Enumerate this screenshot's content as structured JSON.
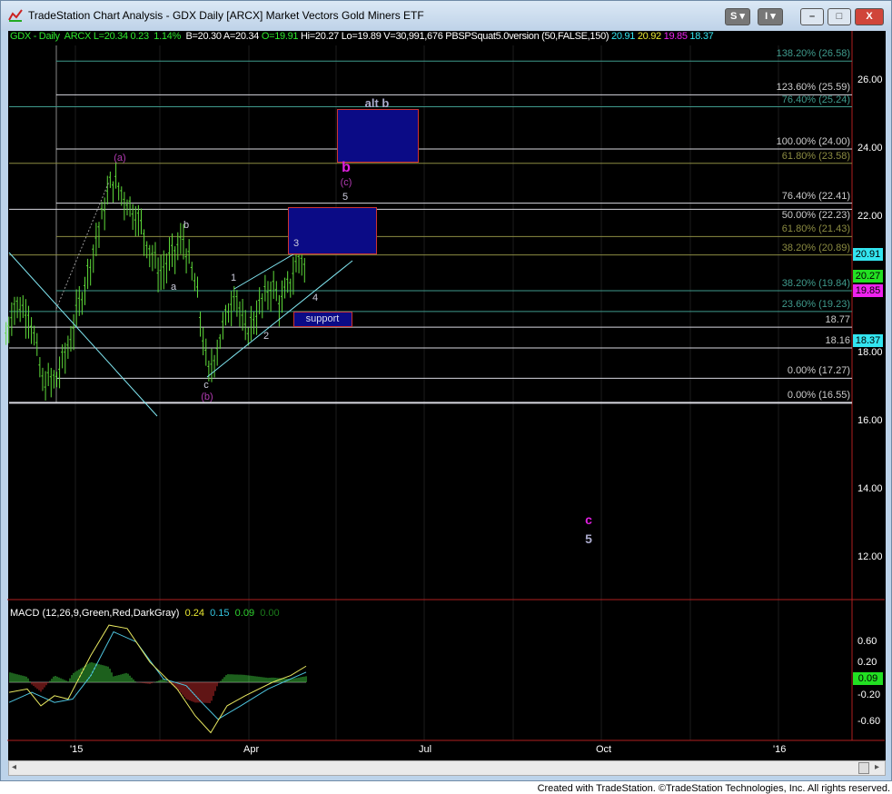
{
  "window": {
    "title": "TradeStation Chart Analysis - GDX Daily [ARCX] Market Vectors Gold Miners ETF",
    "btn_s": "S",
    "btn_i": "I",
    "minimize": "–",
    "restore": "□",
    "close": "X"
  },
  "info": {
    "symbol": "GDX - Daily",
    "exchange": "ARCX",
    "last": "L=20.34",
    "change": "0.23",
    "pct": "1.14%",
    "bid": "B=20.30",
    "ask": "A=20.34",
    "open": "O=19.91",
    "high": "Hi=20.27",
    "low": "Lo=19.89",
    "volume": "V=30,991,676",
    "indicator": "PBSPSquat5.0version (50,FALSE,150)",
    "v1": "20.91",
    "v2": "20.92",
    "v3": "19.85",
    "v4": "18.37"
  },
  "colors": {
    "bars": "#5fdc3a",
    "teal": "#3f9a8c",
    "white": "#d8d8e0",
    "olive": "#8c8c42",
    "box": "#0b0b86",
    "magenta": "#d020d0",
    "cyan": "#7fe5f0"
  },
  "fib_levels": [
    {
      "price": 26.58,
      "label": "138.20% (26.58)",
      "color": "teal",
      "from": "2014-12-22"
    },
    {
      "price": 25.59,
      "label": "123.60% (25.59)",
      "color": "white",
      "from": "2014-12-22"
    },
    {
      "price": 25.24,
      "label": "76.40% (25.24)",
      "color": "teal"
    },
    {
      "price": 24.0,
      "label": "100.00% (24.00)",
      "color": "white",
      "from": "2014-12-22"
    },
    {
      "price": 23.58,
      "label": "61.80% (23.58)",
      "color": "olive"
    },
    {
      "price": 22.41,
      "label": "76.40% (22.41)",
      "color": "white",
      "from": "2014-12-22"
    },
    {
      "price": 22.23,
      "label": "50.00% (22.23)",
      "color": "white"
    },
    {
      "price": 21.43,
      "label": "61.80% (21.43)",
      "color": "olive",
      "from": "2014-12-22"
    },
    {
      "price": 20.89,
      "label": "38.20% (20.89)",
      "color": "olive"
    },
    {
      "price": 19.84,
      "label": "38.20% (19.84)",
      "color": "teal",
      "from": "2014-12-22"
    },
    {
      "price": 19.23,
      "label": "23.60% (19.23)",
      "color": "teal"
    },
    {
      "price": 18.77,
      "label": "18.77",
      "color": "white"
    },
    {
      "price": 18.16,
      "label": "18.16",
      "color": "white"
    },
    {
      "price": 17.27,
      "label": "0.00% (17.27)",
      "color": "white",
      "from": "2014-12-22"
    },
    {
      "price": 16.55,
      "label": "0.00% (16.55)",
      "color": "white"
    }
  ],
  "price_axis": [
    "26.00",
    "24.00",
    "22.00",
    "18.00",
    "16.00",
    "14.00",
    "12.00"
  ],
  "price_tags": [
    {
      "value": "20.91",
      "color": "#33e5f0"
    },
    {
      "value": "20.27",
      "color": "#22e022"
    },
    {
      "value": "19.85",
      "color": "#ee22ee"
    },
    {
      "value": "18.37",
      "color": "#33e5f0"
    }
  ],
  "price_pivots": [
    [
      "2014-11-26",
      18.5
    ],
    [
      "2014-11-30",
      19.4
    ],
    [
      "2014-12-08",
      19.2
    ],
    [
      "2014-12-15",
      17.1
    ],
    [
      "2014-12-22",
      17.2
    ],
    [
      "2014-12-29",
      18.3
    ],
    [
      "2015-01-20",
      23.1
    ],
    [
      "2015-02-02",
      22.0
    ],
    [
      "2015-02-14",
      20.3
    ],
    [
      "2015-02-26",
      21.3
    ],
    [
      "2015-03-05",
      19.8
    ],
    [
      "2015-03-11",
      17.3
    ],
    [
      "2015-03-25",
      19.9
    ],
    [
      "2015-03-30",
      18.5
    ],
    [
      "2015-04-13",
      20.0
    ],
    [
      "2015-04-18",
      19.4
    ],
    [
      "2015-04-28",
      20.9
    ],
    [
      "2015-05-01",
      20.27
    ]
  ],
  "wave_labels": {
    "a_paren": "(a)",
    "b_small": "b",
    "a_small": "a",
    "c_small": "c",
    "b_paren": "(b)",
    "w1": "1",
    "w2": "2",
    "w3": "3",
    "w4": "4",
    "w5": "5",
    "b_big": "b",
    "c_paren": "(c)",
    "alt_b": "alt b",
    "c_big": "c",
    "w5_big": "5",
    "support": "support"
  },
  "macd": {
    "label": "MACD (12,26,9,Green,Red,DarkGray)",
    "v1": "0.24",
    "v2": "0.15",
    "v3": "0.09",
    "v4": "0.00",
    "axis": [
      "0.60",
      "0.20",
      "-0.20",
      "-0.60"
    ],
    "tag": "0.09"
  },
  "time_axis": [
    "'15",
    "Apr",
    "Jul",
    "Oct",
    "'16"
  ],
  "footer": "Created with TradeStation. ©TradeStation Technologies, Inc. All rights reserved."
}
